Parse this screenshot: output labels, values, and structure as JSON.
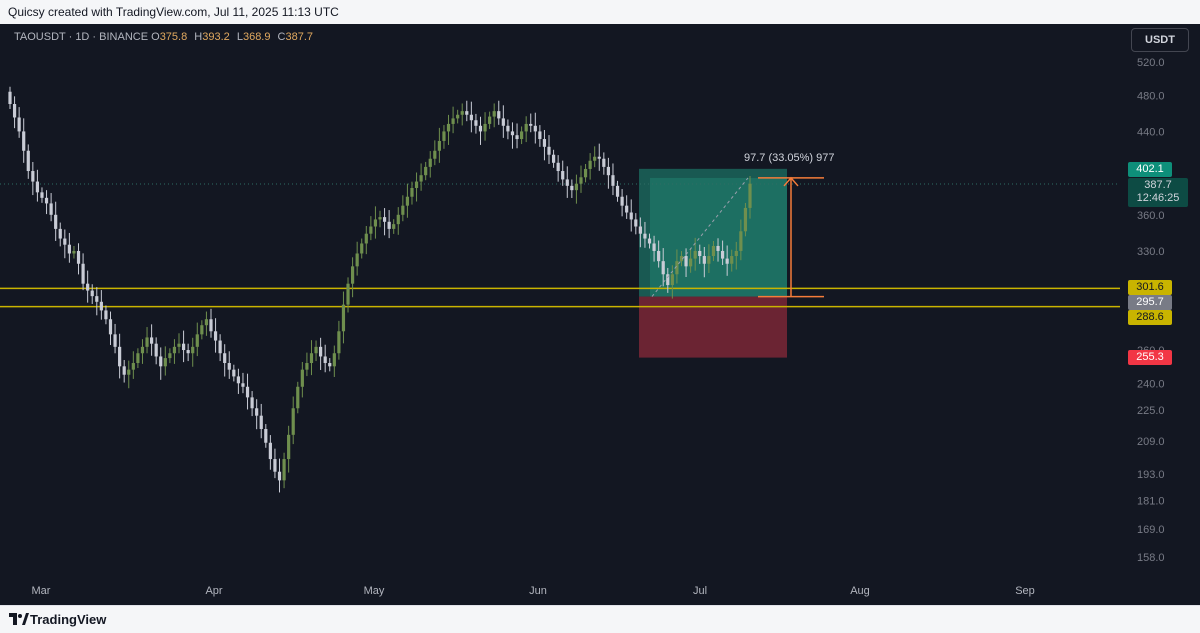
{
  "header": {
    "text": "Quicsy created with TradingView.com, Jul 11, 2025 11:13 UTC"
  },
  "footer": {
    "brand": "TradingView"
  },
  "legend": {
    "symbol": "TAOUSDT · 1D · BINANCE",
    "open_label": "O",
    "open": "375.8",
    "high_label": "H",
    "high": "393.2",
    "low_label": "L",
    "low": "368.9",
    "close_label": "C",
    "close": "387.7"
  },
  "currency_button": "USDT",
  "measure_label": "97.7 (33.05%) 977",
  "price_tags": {
    "target": "402.1",
    "last_price": "387.7",
    "countdown": "12:46:25",
    "upper_level": "301.6",
    "entry": "295.7",
    "lower_level": "288.6",
    "stop": "255.3"
  },
  "colors": {
    "background": "#131722",
    "level_line": "#c9b400",
    "target_zone": "#1f8f7a",
    "stop_zone": "#8a2a3a",
    "measure_arrow": "#f57c3a",
    "candle_up": "#6f8f4e",
    "candle_down": "#c9ccd6"
  },
  "chart_data": {
    "type": "candlestick",
    "symbol": "TAOUSDT",
    "interval": "1D",
    "exchange": "BINANCE",
    "y_scale": "log",
    "ylim": [
      150,
      530
    ],
    "y_ticks": [
      "520.0",
      "480.0",
      "440.0",
      "360.0",
      "330.0",
      "260.0",
      "240.0",
      "225.0",
      "209.0",
      "193.0",
      "181.0",
      "169.0",
      "158.0"
    ],
    "x_ticks": [
      "Mar",
      "Apr",
      "May",
      "Jun",
      "Jul",
      "Aug",
      "Sep"
    ],
    "horizontal_levels": [
      301.6,
      288.6
    ],
    "position": {
      "entry": 295.7,
      "target": 402.1,
      "stop": 255.3
    },
    "measure": {
      "from": 295.7,
      "to": 393.4,
      "change": 97.7,
      "percent": 33.05,
      "bars": 977
    },
    "close_series": [
      470,
      455,
      440,
      420,
      400,
      390,
      380,
      375,
      370,
      360,
      348,
      340,
      335,
      328,
      330,
      320,
      305,
      300,
      296,
      292,
      286,
      280,
      270,
      262,
      250,
      245,
      248,
      252,
      258,
      262,
      268,
      264,
      256,
      250,
      255,
      258,
      262,
      264,
      260,
      258,
      262,
      270,
      276,
      280,
      272,
      266,
      258,
      252,
      248,
      244,
      240,
      238,
      232,
      226,
      222,
      215,
      208,
      200,
      194,
      190,
      200,
      212,
      226,
      238,
      248,
      252,
      258,
      262,
      256,
      252,
      250,
      258,
      272,
      290,
      305,
      318,
      328,
      336,
      344,
      350,
      356,
      358,
      354,
      348,
      352,
      360,
      368,
      376,
      384,
      390,
      396,
      404,
      412,
      420,
      430,
      440,
      448,
      454,
      458,
      462,
      458,
      452,
      446,
      440,
      448,
      456,
      462,
      454,
      446,
      440,
      436,
      432,
      440,
      448,
      446,
      440,
      432,
      424,
      416,
      408,
      400,
      392,
      386,
      382,
      388,
      394,
      402,
      410,
      414,
      412,
      404,
      396,
      386,
      376,
      368,
      362,
      356,
      350,
      344,
      340,
      336,
      330,
      322,
      312,
      304,
      312,
      322,
      326,
      318,
      324,
      330,
      326,
      320,
      326,
      334,
      330,
      324,
      320,
      326,
      330,
      346,
      366,
      388
    ]
  }
}
